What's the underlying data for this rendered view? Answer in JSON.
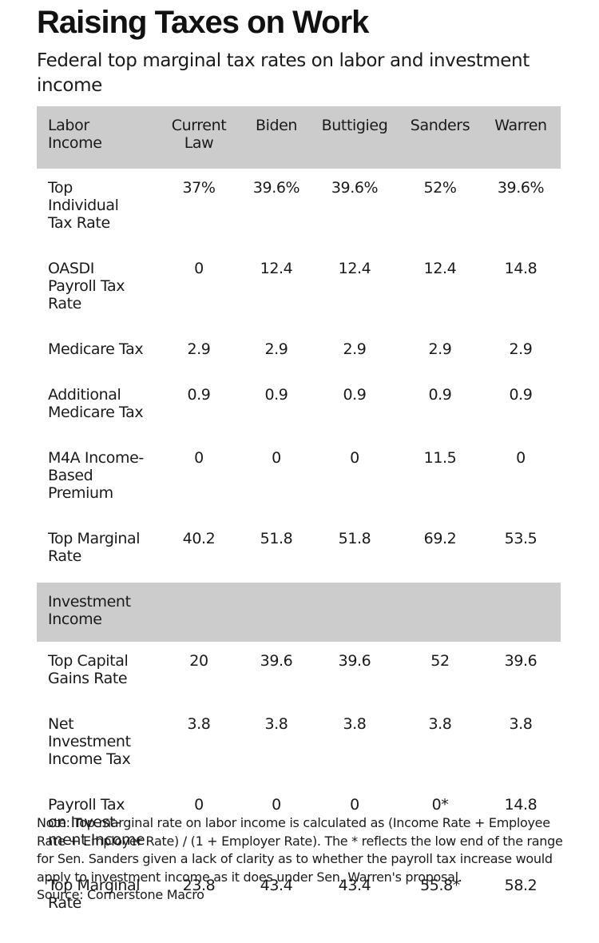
{
  "chart_data": {
    "type": "table",
    "title": "Raising Taxes on Work",
    "subtitle": "Federal top marginal tax rates on labor and investment income",
    "columns": [
      "Current\nLaw",
      "Biden",
      "Buttigieg",
      "Sanders",
      "Warren"
    ],
    "sections": [
      {
        "name": "Labor\nIncome",
        "rows": [
          {
            "label": "Top\nIndividual\nTax Rate",
            "values": [
              "37%",
              "39.6%",
              "39.6%",
              "52%",
              "39.6%"
            ]
          },
          {
            "label": "OASDI\nPayroll Tax\nRate",
            "values": [
              "0",
              "12.4",
              "12.4",
              "12.4",
              "14.8"
            ]
          },
          {
            "label": "Medicare Tax",
            "values": [
              "2.9",
              "2.9",
              "2.9",
              "2.9",
              "2.9"
            ]
          },
          {
            "label": "Additional\nMedicare Tax",
            "values": [
              "0.9",
              "0.9",
              "0.9",
              "0.9",
              "0.9"
            ]
          },
          {
            "label": "M4A Income-\nBased\nPremium",
            "values": [
              "0",
              "0",
              "0",
              "11.5",
              "0"
            ]
          },
          {
            "label": "Top Marginal\nRate",
            "values": [
              "40.2",
              "51.8",
              "51.8",
              "69.2",
              "53.5"
            ]
          }
        ]
      },
      {
        "name": "Investment\nIncome",
        "rows": [
          {
            "label": "Top Capital\nGains Rate",
            "values": [
              "20",
              "39.6",
              "39.6",
              "52",
              "39.6"
            ]
          },
          {
            "label": "Net\nInvestment\nIncome Tax",
            "values": [
              "3.8",
              "3.8",
              "3.8",
              "3.8",
              "3.8"
            ]
          },
          {
            "label": "Payroll Tax\non Invest-\nment Income",
            "values": [
              "0",
              "0",
              "0",
              "0*",
              "14.8"
            ]
          },
          {
            "label": "Top Marginal\nRate",
            "values": [
              "23.8",
              "43.4",
              "43.4",
              "55.8*",
              "58.2"
            ]
          }
        ]
      }
    ],
    "note": "Note: Top marginal rate on labor income is calculated as (Income Rate + Employee Rate + Employer Rate) / (1 + Employer Rate). The * reflects the low end of the range for Sen. Sanders given a lack of clarity as to whether the payroll tax increase would apply to investment income as it does under Sen. Warren's proposal.",
    "source": "Source: Cornerstone Macro"
  }
}
